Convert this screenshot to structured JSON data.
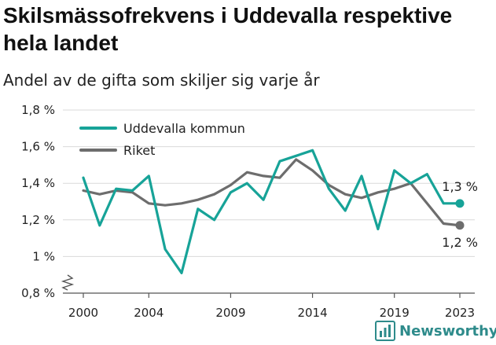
{
  "title": "Skilsmässofrekvens i Uddevalla respektive hela landet",
  "subtitle": "Andel av de gifta som skiljer sig varje år",
  "brand": {
    "name": "Newsworthy"
  },
  "colors": {
    "uddevalla": "#17a398",
    "riket": "#6d6d6d",
    "grid": "#d9d9d9",
    "axis": "#555555"
  },
  "chart_data": {
    "type": "line",
    "title": "Skilsmässofrekvens i Uddevalla respektive hela landet",
    "subtitle": "Andel av de gifta som skiljer sig varje år",
    "x": [
      2000,
      2001,
      2002,
      2003,
      2004,
      2005,
      2006,
      2007,
      2008,
      2009,
      2010,
      2011,
      2012,
      2013,
      2014,
      2015,
      2016,
      2017,
      2018,
      2019,
      2020,
      2021,
      2022,
      2023
    ],
    "series": [
      {
        "name": "Uddevalla kommun",
        "values": [
          1.43,
          1.17,
          1.37,
          1.36,
          1.44,
          1.04,
          0.91,
          1.26,
          1.2,
          1.35,
          1.4,
          1.31,
          1.52,
          1.55,
          1.58,
          1.37,
          1.25,
          1.44,
          1.15,
          1.47,
          1.4,
          1.45,
          1.29,
          1.29
        ]
      },
      {
        "name": "Riket",
        "values": [
          1.36,
          1.34,
          1.36,
          1.35,
          1.29,
          1.28,
          1.29,
          1.31,
          1.34,
          1.39,
          1.46,
          1.44,
          1.43,
          1.53,
          1.47,
          1.39,
          1.34,
          1.32,
          1.35,
          1.37,
          1.4,
          1.29,
          1.18,
          1.17
        ]
      }
    ],
    "end_labels": [
      "1,3 %",
      "1,2 %"
    ],
    "x_ticks": [
      2000,
      2004,
      2009,
      2014,
      2019,
      2023
    ],
    "x_tick_labels": [
      "2000",
      "2004",
      "2009",
      "2014",
      "2019",
      "2023"
    ],
    "y_ticks": [
      0.8,
      1.0,
      1.2,
      1.4,
      1.6,
      1.8
    ],
    "y_tick_labels": [
      "0,8 %",
      "1 %",
      "1,2 %",
      "1,4 %",
      "1,6 %",
      "1,8 %"
    ],
    "ylim": [
      0.8,
      1.8
    ],
    "xlim": [
      2000,
      2023
    ],
    "grid": true,
    "legend": "top-left",
    "y_axis_break": true
  }
}
